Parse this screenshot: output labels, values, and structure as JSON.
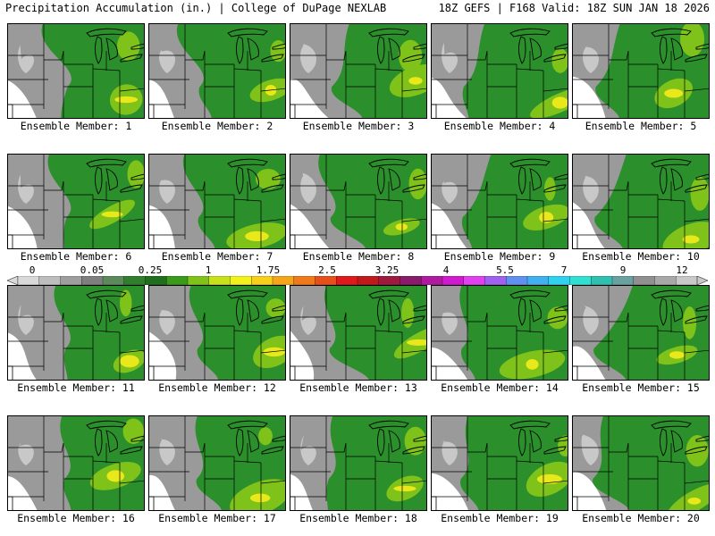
{
  "header": {
    "left_title": "Precipitation Accumulation (in.) | College of DuPage NEXLAB",
    "right_title": "18Z GEFS | F168 Valid: 18Z SUN JAN 18 2026"
  },
  "colorbar": {
    "labels": [
      "0",
      "0.05",
      "0.25",
      "1",
      "1.75",
      "2.5",
      "3.25",
      "4",
      "5.5",
      "7",
      "9",
      "12"
    ],
    "colors": [
      "#d9d9d9",
      "#bdbdbd",
      "#9e9e9e",
      "#7f7f7f",
      "#5c8a5c",
      "#2f7f2f",
      "#1f6f1f",
      "#3a9a1a",
      "#7fc21a",
      "#c8e01a",
      "#f2f21a",
      "#f7d01a",
      "#f5a51a",
      "#f07a1a",
      "#e8501a",
      "#e01a1a",
      "#c01a1a",
      "#a01a40",
      "#8a1a6a",
      "#b01aa0",
      "#d01ad0",
      "#e040f0",
      "#a060f0",
      "#6090f0",
      "#40b0f0",
      "#30d0f0",
      "#30e0d0",
      "#30c0b0",
      "#6aa0a0",
      "#909090",
      "#a8a8a8",
      "#c8c8c8"
    ]
  },
  "members": [
    {
      "label": "Ensemble Member: 1"
    },
    {
      "label": "Ensemble Member: 2"
    },
    {
      "label": "Ensemble Member: 3"
    },
    {
      "label": "Ensemble Member: 4"
    },
    {
      "label": "Ensemble Member: 5"
    },
    {
      "label": "Ensemble Member: 6"
    },
    {
      "label": "Ensemble Member: 7"
    },
    {
      "label": "Ensemble Member: 8"
    },
    {
      "label": "Ensemble Member: 9"
    },
    {
      "label": "Ensemble Member: 10"
    },
    {
      "label": "Ensemble Member: 11"
    },
    {
      "label": "Ensemble Member: 12"
    },
    {
      "label": "Ensemble Member: 13"
    },
    {
      "label": "Ensemble Member: 14"
    },
    {
      "label": "Ensemble Member: 15"
    },
    {
      "label": "Ensemble Member: 16"
    },
    {
      "label": "Ensemble Member: 17"
    },
    {
      "label": "Ensemble Member: 18"
    },
    {
      "label": "Ensemble Member: 19"
    },
    {
      "label": "Ensemble Member: 20"
    }
  ]
}
